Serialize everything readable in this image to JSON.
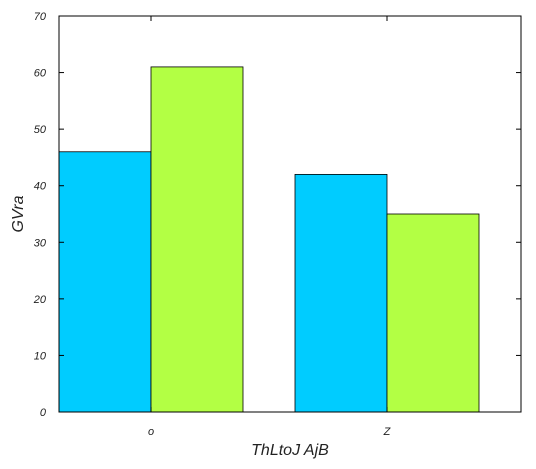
{
  "chart_data": {
    "type": "bar",
    "title": "",
    "xlabel": "ThLtoJ AjB",
    "ylabel": "GVra",
    "categories": [
      "o",
      "Z"
    ],
    "series": [
      {
        "values": [
          46,
          42
        ],
        "color": "#00ccff"
      },
      {
        "values": [
          61,
          35
        ],
        "color": "#b3ff44"
      }
    ],
    "ylim": [
      0,
      70
    ],
    "yticks": [
      0,
      10,
      20,
      30,
      40,
      50,
      60,
      70
    ],
    "grid": false,
    "legend": "none"
  }
}
